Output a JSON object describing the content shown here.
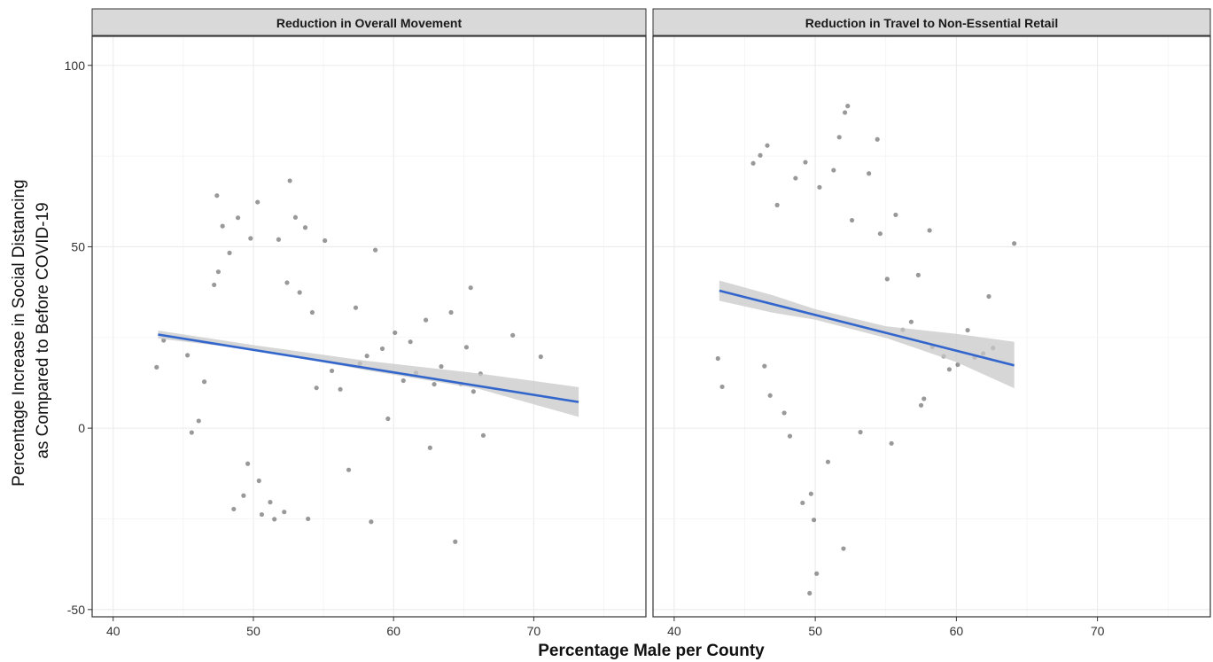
{
  "chart_data": {
    "type": "scatter",
    "xlabel": "Percentage Male per County",
    "ylabel_lines": [
      "Percentage Increase in Social Distancing",
      "as Compared to Before COVID-19"
    ],
    "xlim": [
      38.5,
      78
    ],
    "ylim": [
      -52,
      108
    ],
    "x_ticks": [
      40,
      50,
      60,
      70
    ],
    "y_ticks": [
      -50,
      0,
      50,
      100
    ],
    "grid": true,
    "legend": "none",
    "colors": {
      "points": "#000000",
      "fit_line": "#3366cc",
      "ci_band": "#c8c8c8",
      "strip_fill": "#d9d9d9",
      "panel_border": "#333333",
      "grid": "#ebebeb"
    },
    "panels": [
      {
        "title": "Reduction in Overall Movement",
        "fit": {
          "x": [
            43.2,
            73.2
          ],
          "y": [
            25.8,
            7.2
          ]
        },
        "ci": {
          "x": [
            43.2,
            50,
            58,
            66,
            73.2
          ],
          "upper": [
            26.9,
            22.9,
            18.6,
            15.1,
            11.3
          ],
          "lower": [
            24.7,
            21.6,
            16.0,
            10.9,
            3.1
          ]
        },
        "points": [
          [
            43.1,
            16.8
          ],
          [
            43.6,
            24.2
          ],
          [
            45.3,
            20.1
          ],
          [
            45.6,
            -1.2
          ],
          [
            46.1,
            2.0
          ],
          [
            46.5,
            12.8
          ],
          [
            47.2,
            39.5
          ],
          [
            47.4,
            64.1
          ],
          [
            47.5,
            43.1
          ],
          [
            47.8,
            55.7
          ],
          [
            48.3,
            48.3
          ],
          [
            48.6,
            -22.3
          ],
          [
            48.9,
            58.0
          ],
          [
            49.3,
            -18.6
          ],
          [
            49.6,
            -9.8
          ],
          [
            49.8,
            52.3
          ],
          [
            50.3,
            62.3
          ],
          [
            50.4,
            -14.5
          ],
          [
            50.6,
            -23.8
          ],
          [
            51.2,
            -20.4
          ],
          [
            51.5,
            -25.1
          ],
          [
            51.8,
            52.0
          ],
          [
            52.2,
            -23.1
          ],
          [
            52.4,
            40.1
          ],
          [
            52.6,
            68.2
          ],
          [
            53.0,
            58.1
          ],
          [
            53.3,
            37.4
          ],
          [
            53.7,
            55.3
          ],
          [
            53.9,
            -25.0
          ],
          [
            54.2,
            31.9
          ],
          [
            54.5,
            11.1
          ],
          [
            55.1,
            51.7
          ],
          [
            55.6,
            15.8
          ],
          [
            56.2,
            10.7
          ],
          [
            56.8,
            -11.5
          ],
          [
            57.3,
            33.2
          ],
          [
            57.6,
            17.8
          ],
          [
            58.1,
            19.9
          ],
          [
            58.4,
            -25.8
          ],
          [
            58.7,
            49.1
          ],
          [
            59.2,
            21.9
          ],
          [
            59.6,
            2.6
          ],
          [
            60.1,
            26.3
          ],
          [
            60.7,
            13.1
          ],
          [
            61.2,
            23.8
          ],
          [
            61.6,
            15.2
          ],
          [
            62.3,
            29.8
          ],
          [
            62.6,
            -5.4
          ],
          [
            62.9,
            12.1
          ],
          [
            63.4,
            17.0
          ],
          [
            64.1,
            31.9
          ],
          [
            64.4,
            -31.3
          ],
          [
            64.8,
            12.2
          ],
          [
            65.2,
            22.3
          ],
          [
            65.5,
            38.7
          ],
          [
            65.7,
            10.1
          ],
          [
            66.2,
            15.0
          ],
          [
            66.4,
            -2.0
          ],
          [
            68.5,
            25.6
          ],
          [
            70.5,
            19.7
          ]
        ]
      },
      {
        "title": "Reduction in Travel to Non-Essential Retail",
        "fit": {
          "x": [
            43.2,
            64.1
          ],
          "y": [
            37.9,
            17.3
          ]
        },
        "ci": {
          "x": [
            43.2,
            47,
            50,
            55,
            60,
            64.1
          ],
          "upper": [
            40.7,
            36.6,
            32.8,
            28.1,
            26.0,
            23.8
          ],
          "lower": [
            35.1,
            31.8,
            29.9,
            24.9,
            18.2,
            11.0
          ]
        },
        "points": [
          [
            43.1,
            19.2
          ],
          [
            43.4,
            11.4
          ],
          [
            45.6,
            73.0
          ],
          [
            46.1,
            75.2
          ],
          [
            46.4,
            17.1
          ],
          [
            46.6,
            77.9
          ],
          [
            46.8,
            9.0
          ],
          [
            47.3,
            61.5
          ],
          [
            47.8,
            4.2
          ],
          [
            48.2,
            -2.2
          ],
          [
            48.6,
            68.9
          ],
          [
            49.1,
            -20.6
          ],
          [
            49.3,
            73.3
          ],
          [
            49.7,
            -18.1
          ],
          [
            49.9,
            -25.3
          ],
          [
            50.1,
            -40.1
          ],
          [
            49.6,
            -45.5
          ],
          [
            50.3,
            66.4
          ],
          [
            50.9,
            -9.3
          ],
          [
            51.3,
            71.1
          ],
          [
            51.7,
            80.2
          ],
          [
            52.1,
            87.0
          ],
          [
            52.3,
            88.8
          ],
          [
            52.0,
            -33.2
          ],
          [
            52.6,
            57.3
          ],
          [
            53.2,
            -1.1
          ],
          [
            53.8,
            70.2
          ],
          [
            54.4,
            79.6
          ],
          [
            54.6,
            53.6
          ],
          [
            55.1,
            41.1
          ],
          [
            55.4,
            -4.2
          ],
          [
            55.7,
            58.8
          ],
          [
            56.2,
            27.1
          ],
          [
            56.8,
            29.3
          ],
          [
            57.3,
            42.2
          ],
          [
            57.5,
            6.3
          ],
          [
            57.7,
            8.1
          ],
          [
            58.1,
            54.5
          ],
          [
            58.3,
            22.4
          ],
          [
            59.1,
            19.8
          ],
          [
            59.5,
            16.2
          ],
          [
            60.1,
            17.5
          ],
          [
            60.8,
            27.0
          ],
          [
            61.3,
            19.5
          ],
          [
            61.9,
            20.6
          ],
          [
            62.3,
            36.3
          ],
          [
            62.6,
            22.1
          ],
          [
            64.1,
            50.9
          ]
        ]
      }
    ]
  }
}
